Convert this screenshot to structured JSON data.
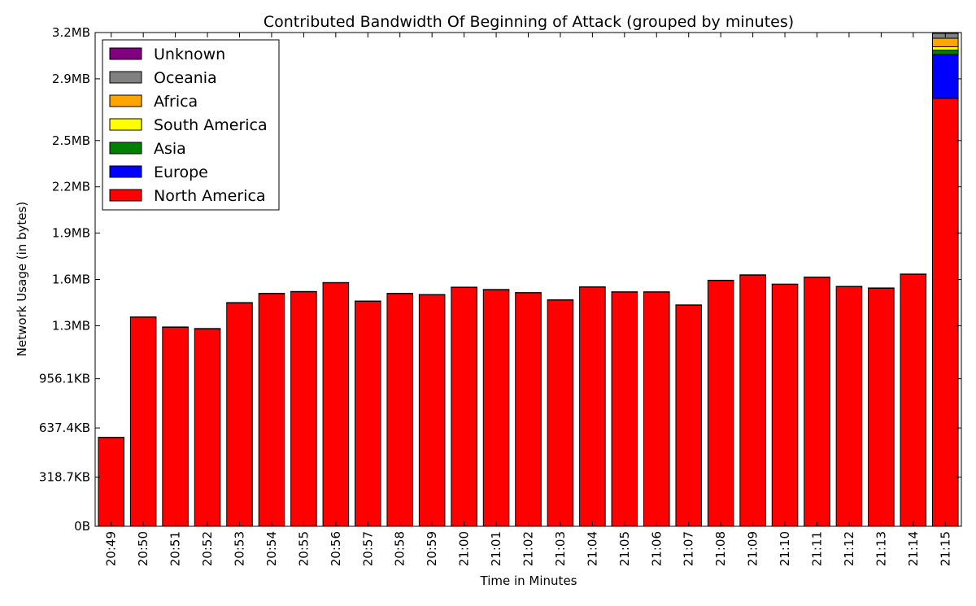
{
  "chart_data": {
    "type": "bar",
    "stacked": true,
    "title": "Contributed Bandwidth Of Beginning of Attack (grouped by minutes)",
    "xlabel": "Time in Minutes",
    "ylabel": "Network Usage (in bytes)",
    "ylim": [
      0,
      3200000
    ],
    "y_ticks": [
      {
        "value": 0,
        "label": "0B"
      },
      {
        "value": 318700,
        "label": "318.7KB"
      },
      {
        "value": 637400,
        "label": "637.4KB"
      },
      {
        "value": 956100,
        "label": "956.1KB"
      },
      {
        "value": 1300000,
        "label": "1.3MB"
      },
      {
        "value": 1600000,
        "label": "1.6MB"
      },
      {
        "value": 1900000,
        "label": "1.9MB"
      },
      {
        "value": 2200000,
        "label": "2.2MB"
      },
      {
        "value": 2500000,
        "label": "2.5MB"
      },
      {
        "value": 2900000,
        "label": "2.9MB"
      },
      {
        "value": 3200000,
        "label": "3.2MB"
      }
    ],
    "categories": [
      "20:49",
      "20:50",
      "20:51",
      "20:52",
      "20:53",
      "20:54",
      "20:55",
      "20:56",
      "20:57",
      "20:58",
      "20:59",
      "21:00",
      "21:01",
      "21:02",
      "21:03",
      "21:04",
      "21:05",
      "21:06",
      "21:07",
      "21:08",
      "21:09",
      "21:10",
      "21:11",
      "21:12",
      "21:13",
      "21:14",
      "21:15"
    ],
    "legend_position": "top-left",
    "legend_order": [
      "Unknown",
      "Oceania",
      "Africa",
      "South America",
      "Asia",
      "Europe",
      "North America"
    ],
    "series": [
      {
        "name": "North America",
        "color": "#ff0000",
        "values": [
          575000,
          1355000,
          1290000,
          1280000,
          1448000,
          1508000,
          1520000,
          1578000,
          1458000,
          1508000,
          1500000,
          1548000,
          1533000,
          1513000,
          1466000,
          1550000,
          1518000,
          1518000,
          1433000,
          1593000,
          1628000,
          1568000,
          1613000,
          1553000,
          1543000,
          1633000,
          2773000
        ]
      },
      {
        "name": "Europe",
        "color": "#0000ff",
        "values": [
          0,
          0,
          0,
          0,
          0,
          0,
          0,
          0,
          0,
          0,
          0,
          0,
          0,
          0,
          0,
          0,
          0,
          0,
          0,
          0,
          0,
          0,
          0,
          0,
          0,
          0,
          285000
        ]
      },
      {
        "name": "Asia",
        "color": "#008000",
        "values": [
          0,
          0,
          0,
          0,
          0,
          0,
          0,
          0,
          0,
          0,
          0,
          0,
          0,
          0,
          0,
          0,
          0,
          0,
          0,
          0,
          0,
          0,
          0,
          0,
          0,
          0,
          28000
        ]
      },
      {
        "name": "South America",
        "color": "#ffff00",
        "values": [
          0,
          0,
          0,
          0,
          0,
          0,
          0,
          0,
          0,
          0,
          0,
          0,
          0,
          0,
          0,
          0,
          0,
          0,
          0,
          0,
          0,
          0,
          0,
          0,
          0,
          0,
          22000
        ]
      },
      {
        "name": "Africa",
        "color": "#ffa500",
        "values": [
          0,
          0,
          0,
          0,
          0,
          0,
          0,
          0,
          0,
          0,
          0,
          0,
          0,
          0,
          0,
          0,
          0,
          0,
          0,
          0,
          0,
          0,
          0,
          0,
          0,
          0,
          55000
        ]
      },
      {
        "name": "Oceania",
        "color": "#808080",
        "values": [
          2000,
          2000,
          2000,
          2000,
          2000,
          2000,
          2000,
          2000,
          2000,
          2000,
          2000,
          2000,
          2000,
          2000,
          2000,
          2000,
          2000,
          2000,
          2000,
          2000,
          2000,
          2000,
          2000,
          2000,
          2000,
          2000,
          32000
        ]
      },
      {
        "name": "Unknown",
        "color": "#800080",
        "values": [
          0,
          0,
          0,
          0,
          0,
          0,
          0,
          0,
          0,
          0,
          0,
          0,
          0,
          0,
          0,
          0,
          0,
          0,
          0,
          0,
          0,
          0,
          0,
          0,
          0,
          0,
          2000
        ]
      }
    ]
  }
}
